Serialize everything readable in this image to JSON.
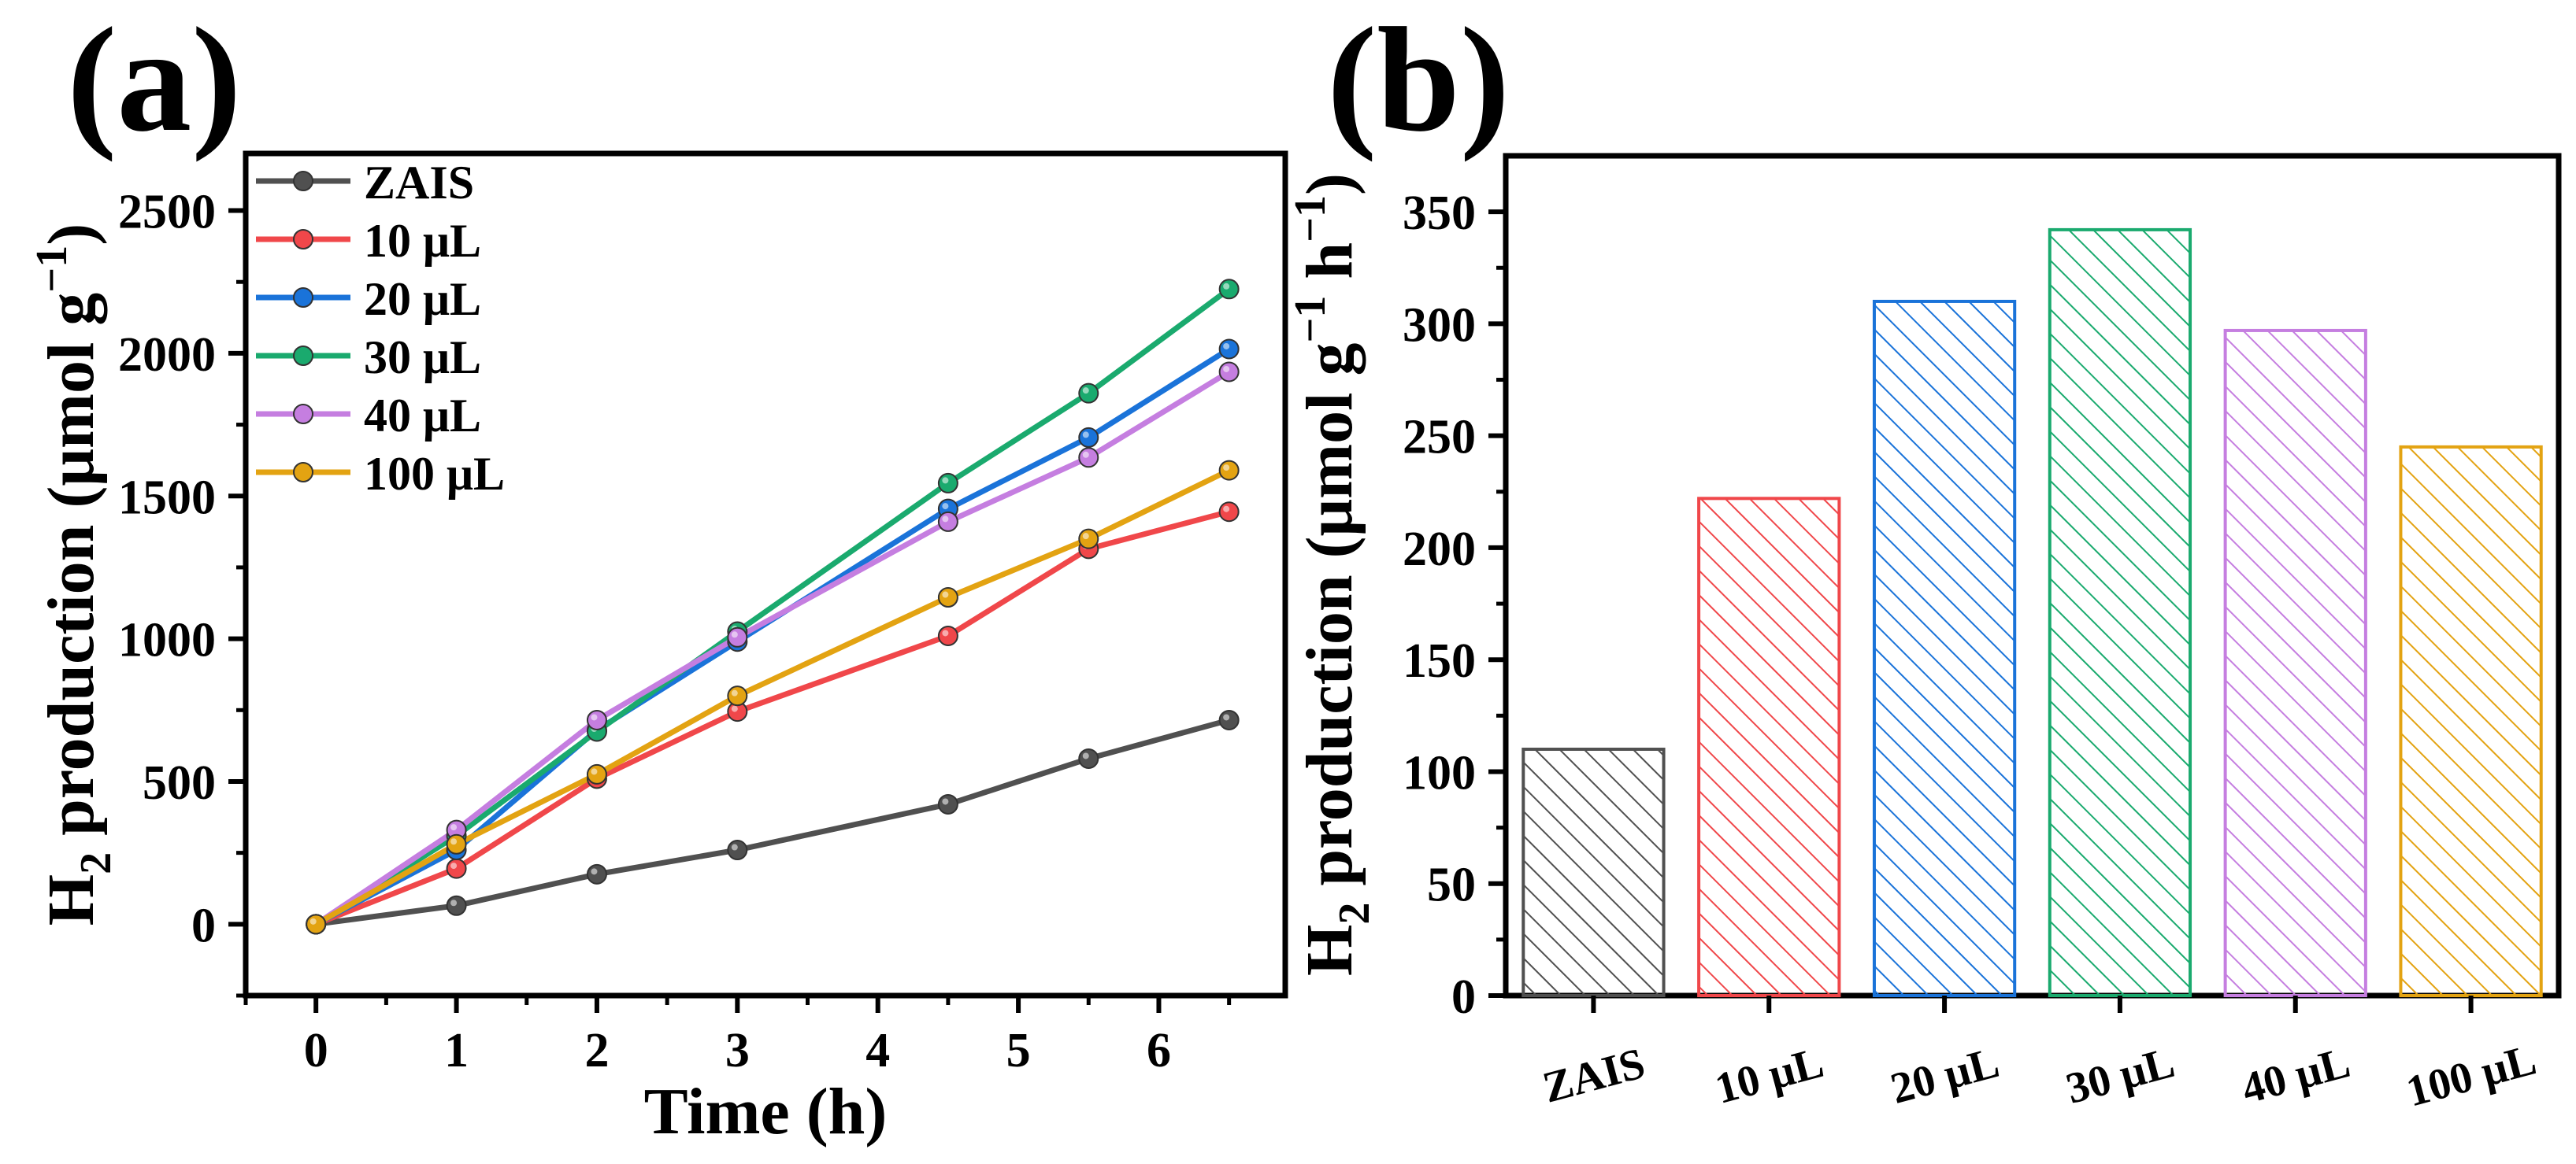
{
  "panels": {
    "a": {
      "letter": "(a)"
    },
    "b": {
      "letter": "(b)"
    }
  },
  "chart_data": [
    {
      "type": "line",
      "panel": "(a)",
      "xlabel": "Time (h)",
      "ylabel": {
        "main": "H",
        "sub": "2",
        "rest": " production (μmol g",
        "sup": "−1",
        "close": ")"
      },
      "xlim": [
        -0.5,
        6.9
      ],
      "ylim": [
        -250,
        2700
      ],
      "xticks": [
        0,
        1,
        2,
        3,
        4,
        5,
        6
      ],
      "yticks": [
        0,
        500,
        1000,
        1500,
        2000,
        2500
      ],
      "x": [
        0,
        1,
        2,
        3,
        4.5,
        5.5,
        6.5
      ],
      "legend_position": "top-left",
      "grid": false,
      "series": [
        {
          "name": "ZAIS",
          "color": "#505050",
          "values": [
            0,
            65,
            175,
            260,
            420,
            580,
            715
          ]
        },
        {
          "name": "10 μL",
          "color": "#f0474a",
          "values": [
            0,
            195,
            510,
            745,
            1010,
            1315,
            1445
          ]
        },
        {
          "name": "20 μL",
          "color": "#1a73d9",
          "values": [
            0,
            260,
            680,
            990,
            1455,
            1705,
            2015
          ]
        },
        {
          "name": "30 μL",
          "color": "#1aaa6e",
          "values": [
            0,
            310,
            675,
            1025,
            1545,
            1860,
            2225
          ]
        },
        {
          "name": "40 μL",
          "color": "#c57ee0",
          "values": [
            0,
            330,
            715,
            1005,
            1410,
            1635,
            1935
          ]
        },
        {
          "name": "100 μL",
          "color": "#e3a312",
          "values": [
            0,
            280,
            525,
            800,
            1145,
            1350,
            1590
          ]
        }
      ]
    },
    {
      "type": "bar",
      "panel": "(b)",
      "xlabel": "",
      "ylabel": {
        "main": "H",
        "sub": "2",
        "rest": " production (μmol g",
        "sup1": "−1",
        "mid": " h",
        "sup2": "−1",
        "close": ")"
      },
      "ylim": [
        0,
        375
      ],
      "yticks": [
        0,
        50,
        100,
        150,
        200,
        250,
        300,
        350
      ],
      "categories": [
        "ZAIS",
        "10 μL",
        "20 μL",
        "30 μL",
        "40 μL",
        "100 μL"
      ],
      "values": [
        110,
        222,
        310,
        342,
        297,
        245
      ],
      "colors": [
        "#505050",
        "#f0474a",
        "#1a73d9",
        "#1aaa6e",
        "#c57ee0",
        "#e3a312"
      ],
      "fill": "diagonal-hatch",
      "grid": false
    }
  ]
}
